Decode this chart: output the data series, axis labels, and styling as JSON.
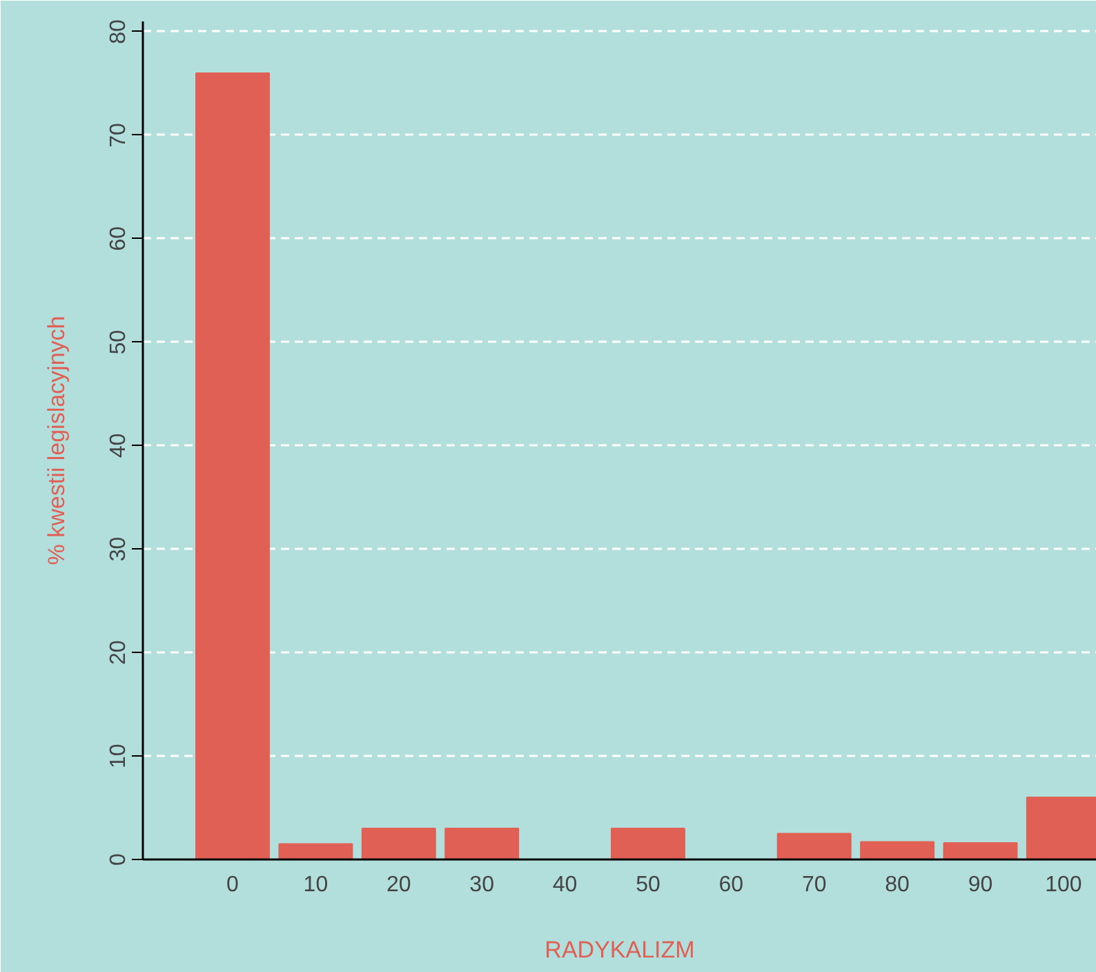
{
  "chart_data": {
    "type": "bar",
    "xlabel": "RADYKALIZM",
    "ylabel": "% kwestii legislacyjnych",
    "x": [
      0,
      10,
      20,
      30,
      40,
      50,
      60,
      70,
      80,
      90,
      100
    ],
    "values": [
      76,
      1.5,
      3,
      3,
      0,
      3,
      0,
      2.5,
      1.7,
      1.6,
      6
    ],
    "color": "#e06055",
    "xlim": [
      -10.8,
      104
    ],
    "ylim": [
      0,
      81
    ],
    "xticks": [
      0,
      10,
      20,
      30,
      40,
      50,
      60,
      70,
      80,
      90,
      100
    ],
    "yticks": [
      0,
      10,
      20,
      30,
      40,
      50,
      60,
      70,
      80
    ],
    "grid": "y"
  }
}
